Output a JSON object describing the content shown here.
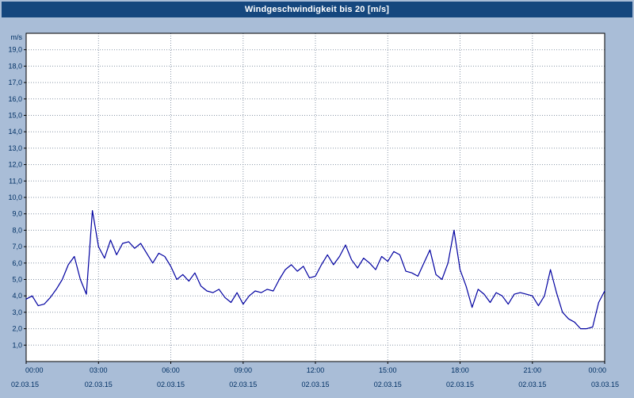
{
  "window": {
    "title": "Windgeschwindigkeit bis 20 [m/s]"
  },
  "colors": {
    "background": "#a9bdd7",
    "titlebar_bg": "#15477e",
    "titlebar_text": "#ffffff",
    "plot_bg": "#ffffff",
    "plot_border": "#000000",
    "grid": "#8a97a8",
    "axis_text": "#003064",
    "line": "#0000a0"
  },
  "chart_data": {
    "type": "line",
    "title": "Windgeschwindigkeit bis 20 [m/s]",
    "unit_label": "m/s",
    "ylim": [
      0,
      20
    ],
    "xlim_hours": [
      0,
      24
    ],
    "grid": "dotted",
    "legend": "none",
    "y_tick_values": [
      1,
      2,
      3,
      4,
      5,
      6,
      7,
      8,
      9,
      10,
      11,
      12,
      13,
      14,
      15,
      16,
      17,
      18,
      19
    ],
    "y_tick_labels": [
      "1,0",
      "2,0",
      "3,0",
      "4,0",
      "5,0",
      "6,0",
      "7,0",
      "8,0",
      "9,0",
      "10,0",
      "11,0",
      "12,0",
      "13,0",
      "14,0",
      "15,0",
      "16,0",
      "17,0",
      "18,0",
      "19,0"
    ],
    "x_ticks": [
      {
        "hour": 0,
        "time": "00:00",
        "date": "02.03.15"
      },
      {
        "hour": 3,
        "time": "03:00",
        "date": "02.03.15"
      },
      {
        "hour": 6,
        "time": "06:00",
        "date": "02.03.15"
      },
      {
        "hour": 9,
        "time": "09:00",
        "date": "02.03.15"
      },
      {
        "hour": 12,
        "time": "12:00",
        "date": "02.03.15"
      },
      {
        "hour": 15,
        "time": "15:00",
        "date": "02.03.15"
      },
      {
        "hour": 18,
        "time": "18:00",
        "date": "02.03.15"
      },
      {
        "hour": 21,
        "time": "21:00",
        "date": "02.03.15"
      },
      {
        "hour": 24,
        "time": "00:00",
        "date": "03.03.15"
      }
    ],
    "series": [
      {
        "name": "Windgeschwindigkeit",
        "x_start_hour": 0,
        "x_step_hours": 0.25,
        "values": [
          3.8,
          4.0,
          3.4,
          3.5,
          3.9,
          4.4,
          5.0,
          5.9,
          6.4,
          5.0,
          4.1,
          9.2,
          7.0,
          6.3,
          7.4,
          6.5,
          7.2,
          7.3,
          6.9,
          7.2,
          6.6,
          6.0,
          6.6,
          6.4,
          5.8,
          5.0,
          5.3,
          4.9,
          5.4,
          4.6,
          4.3,
          4.2,
          4.4,
          3.9,
          3.6,
          4.2,
          3.5,
          4.0,
          4.3,
          4.2,
          4.4,
          4.3,
          5.0,
          5.6,
          5.9,
          5.5,
          5.8,
          5.1,
          5.2,
          5.9,
          6.5,
          5.9,
          6.4,
          7.1,
          6.2,
          5.7,
          6.3,
          6.0,
          5.6,
          6.4,
          6.1,
          6.7,
          6.5,
          5.5,
          5.4,
          5.2,
          6.0,
          6.8,
          5.3,
          5.0,
          6.0,
          8.0,
          5.6,
          4.6,
          3.3,
          4.4,
          4.1,
          3.6,
          4.2,
          4.0,
          3.5,
          4.1,
          4.2,
          4.1,
          4.0,
          3.4,
          4.0,
          5.6,
          4.2,
          3.0,
          2.6,
          2.4,
          2.0,
          2.0,
          2.1,
          3.6,
          4.3
        ]
      }
    ]
  }
}
